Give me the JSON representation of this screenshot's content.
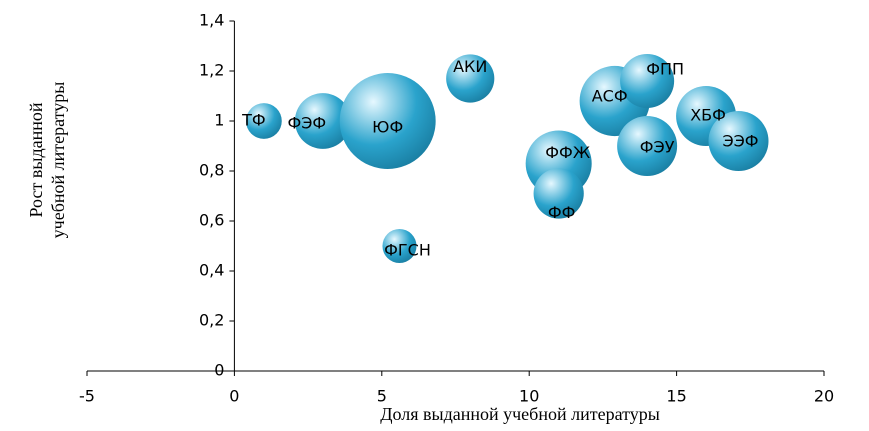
{
  "chart_data": {
    "type": "bubble",
    "xlabel": "Доля выданной учебной литературы",
    "ylabel": [
      "Рост выданной",
      "учебной  литературы"
    ],
    "labels": [
      "ТФ",
      "ФЭФ",
      "ЮФ",
      "ФГСН",
      "АКИ",
      "ФФЖ",
      "ФФ",
      "АСФ",
      "ФПП",
      "ФЭУ",
      "ХБФ",
      "ЭЭФ"
    ],
    "x": [
      1,
      3,
      5.2,
      5.6,
      8,
      11,
      11,
      12.9,
      14,
      14,
      16,
      17.1
    ],
    "values": [
      1,
      1,
      1,
      0.5,
      1.17,
      0.83,
      0.71,
      1.08,
      1.16,
      0.9,
      1.02,
      0.92
    ],
    "sizes": [
      3.2,
      7.8,
      23,
      2.9,
      5.8,
      10.9,
      6.3,
      12.3,
      7.3,
      9,
      9,
      9
    ],
    "color": "#2aa3cc",
    "xlim": [
      -5,
      20
    ],
    "xticks": [
      -5,
      0,
      5,
      10,
      15,
      20
    ],
    "ylim": [
      0,
      1.4
    ],
    "yticks": [
      0,
      {
        "value": 0.2,
        "label": "0,2"
      },
      {
        "value": 0.4,
        "label": "0,4"
      },
      {
        "value": 0.6,
        "label": "0,6"
      },
      {
        "value": 0.8,
        "label": "0,8"
      },
      1,
      {
        "value": 1.2,
        "label": "1,2"
      },
      {
        "value": 1.4,
        "label": "1,4"
      }
    ],
    "grid": false
  }
}
